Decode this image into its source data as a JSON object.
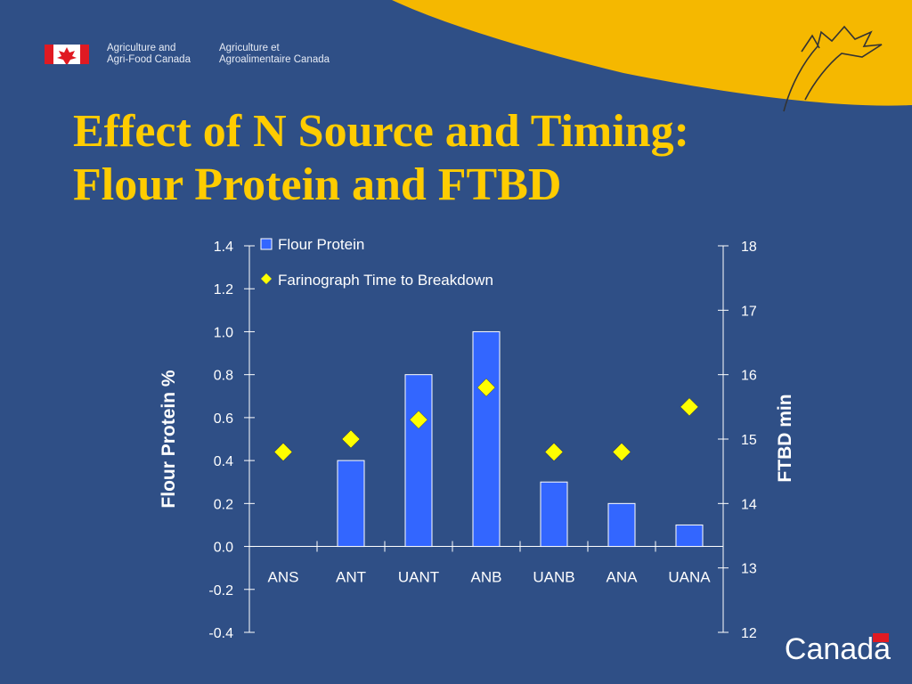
{
  "header": {
    "org_en_line1": "Agriculture and",
    "org_en_line2": "Agri-Food Canada",
    "org_fr_line1": "Agriculture et",
    "org_fr_line2": "Agroalimentaire Canada",
    "wordmark": "Canada"
  },
  "slide": {
    "title_line1": "Effect of N Source and Timing:",
    "title_line2": "Flour Protein and FTBD"
  },
  "colors": {
    "background": "#2f4f86",
    "title": "#ffcc00",
    "bar": "#3366ff",
    "marker": "#ffff00",
    "swoosh": "#f5b800"
  },
  "chart_data": {
    "type": "bar",
    "categories": [
      "ANS",
      "ANT",
      "UANT",
      "ANB",
      "UANB",
      "ANA",
      "UANA"
    ],
    "series": [
      {
        "name": "Flour Protein",
        "type": "bar",
        "axis": "left",
        "values": [
          0.0,
          0.4,
          0.8,
          1.0,
          0.3,
          0.2,
          0.1
        ]
      },
      {
        "name": "Farinograph Time to Breakdown",
        "type": "scatter",
        "axis": "right",
        "marker": "diamond",
        "values": [
          14.8,
          15.0,
          15.3,
          15.8,
          14.8,
          14.8,
          15.5
        ]
      }
    ],
    "ylabel": "Flour Protein %",
    "y2label": "FTBD min",
    "ylim": [
      -0.4,
      1.4
    ],
    "y2lim": [
      12,
      18
    ],
    "yticks": [
      "1.4",
      "1.2",
      "1.0",
      "0.8",
      "0.6",
      "0.4",
      "0.2",
      "0.0",
      "-0.2",
      "-0.4"
    ],
    "y2ticks": [
      "18",
      "17",
      "16",
      "15",
      "14",
      "13",
      "12"
    ],
    "legend_position": "top-left",
    "grid": false
  }
}
